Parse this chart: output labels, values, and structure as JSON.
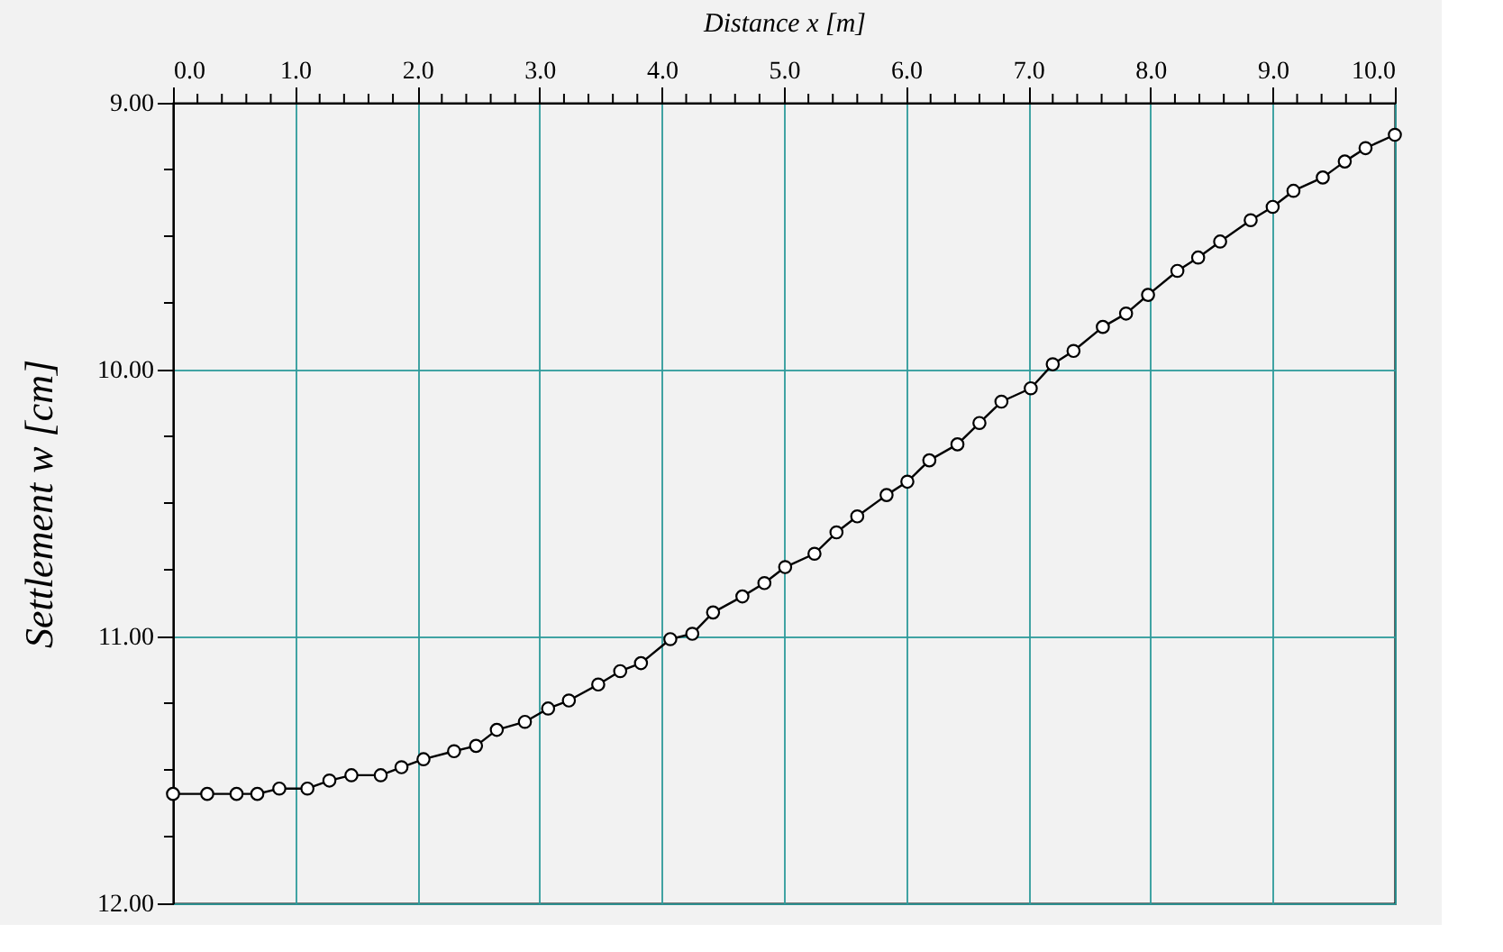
{
  "chart_data": {
    "type": "line",
    "xlabel": "Distance x [m]",
    "ylabel": "Settlement w [cm]",
    "xlim": [
      0,
      10
    ],
    "ylim": [
      12,
      9
    ],
    "xticks": [
      {
        "value": 0,
        "label": "0.0"
      },
      {
        "value": 0.2,
        "label": null
      },
      {
        "value": 0.4,
        "label": null
      },
      {
        "value": 0.6,
        "label": null
      },
      {
        "value": 0.8,
        "label": null
      },
      {
        "value": 1,
        "label": "1.0"
      },
      {
        "value": 1.2,
        "label": null
      },
      {
        "value": 1.4,
        "label": null
      },
      {
        "value": 1.6,
        "label": null
      },
      {
        "value": 1.8,
        "label": null
      },
      {
        "value": 2,
        "label": "2.0"
      },
      {
        "value": 2.2,
        "label": null
      },
      {
        "value": 2.4,
        "label": null
      },
      {
        "value": 2.6,
        "label": null
      },
      {
        "value": 2.8,
        "label": null
      },
      {
        "value": 3,
        "label": "3.0"
      },
      {
        "value": 3.2,
        "label": null
      },
      {
        "value": 3.4,
        "label": null
      },
      {
        "value": 3.6,
        "label": null
      },
      {
        "value": 3.8,
        "label": null
      },
      {
        "value": 4,
        "label": "4.0"
      },
      {
        "value": 4.2,
        "label": null
      },
      {
        "value": 4.4,
        "label": null
      },
      {
        "value": 4.6,
        "label": null
      },
      {
        "value": 4.8,
        "label": null
      },
      {
        "value": 5,
        "label": "5.0"
      },
      {
        "value": 5.2,
        "label": null
      },
      {
        "value": 5.4,
        "label": null
      },
      {
        "value": 5.6,
        "label": null
      },
      {
        "value": 5.8,
        "label": null
      },
      {
        "value": 6,
        "label": "6.0"
      },
      {
        "value": 6.2,
        "label": null
      },
      {
        "value": 6.4,
        "label": null
      },
      {
        "value": 6.6,
        "label": null
      },
      {
        "value": 6.8,
        "label": null
      },
      {
        "value": 7,
        "label": "7.0"
      },
      {
        "value": 7.2,
        "label": null
      },
      {
        "value": 7.4,
        "label": null
      },
      {
        "value": 7.6,
        "label": null
      },
      {
        "value": 7.8,
        "label": null
      },
      {
        "value": 8,
        "label": "8.0"
      },
      {
        "value": 8.2,
        "label": null
      },
      {
        "value": 8.4,
        "label": null
      },
      {
        "value": 8.6,
        "label": null
      },
      {
        "value": 8.8,
        "label": null
      },
      {
        "value": 9,
        "label": "9.0"
      },
      {
        "value": 9.2,
        "label": null
      },
      {
        "value": 9.4,
        "label": null
      },
      {
        "value": 9.6,
        "label": null
      },
      {
        "value": 9.8,
        "label": null
      },
      {
        "value": 10,
        "label": "10.0"
      }
    ],
    "yticks": [
      {
        "value": 9,
        "label": "9.00"
      },
      {
        "value": 9.25,
        "label": null
      },
      {
        "value": 9.5,
        "label": null
      },
      {
        "value": 9.75,
        "label": null
      },
      {
        "value": 10,
        "label": "10.00"
      },
      {
        "value": 10.25,
        "label": null
      },
      {
        "value": 10.5,
        "label": null
      },
      {
        "value": 10.75,
        "label": null
      },
      {
        "value": 11,
        "label": "11.00"
      },
      {
        "value": 11.25,
        "label": null
      },
      {
        "value": 11.5,
        "label": null
      },
      {
        "value": 11.75,
        "label": null
      },
      {
        "value": 12,
        "label": "12.00"
      }
    ],
    "grid": true,
    "marker": "circle",
    "line_style": "solid",
    "series": [
      {
        "color": "#000000",
        "x": [
          0,
          0.28,
          0.52,
          0.69,
          0.87,
          1.1,
          1.28,
          1.46,
          1.7,
          1.87,
          2.05,
          2.3,
          2.48,
          2.65,
          2.88,
          3.07,
          3.24,
          3.48,
          3.66,
          3.83,
          4.07,
          4.25,
          4.42,
          4.66,
          4.84,
          5.01,
          5.25,
          5.43,
          5.6,
          5.84,
          6.01,
          6.19,
          6.42,
          6.6,
          6.78,
          7.02,
          7.2,
          7.37,
          7.61,
          7.8,
          7.98,
          8.22,
          8.39,
          8.57,
          8.82,
          9.0,
          9.17,
          9.41,
          9.59,
          9.76,
          10.0
        ],
        "values": [
          11.59,
          11.59,
          11.59,
          11.59,
          11.57,
          11.57,
          11.54,
          11.52,
          11.52,
          11.49,
          11.46,
          11.43,
          11.41,
          11.35,
          11.32,
          11.27,
          11.24,
          11.18,
          11.13,
          11.1,
          11.01,
          10.99,
          10.91,
          10.85,
          10.8,
          10.74,
          10.69,
          10.61,
          10.55,
          10.47,
          10.42,
          10.34,
          10.28,
          10.2,
          10.12,
          10.07,
          9.98,
          9.93,
          9.84,
          9.79,
          9.72,
          9.63,
          9.58,
          9.52,
          9.44,
          9.39,
          9.33,
          9.28,
          9.22,
          9.17,
          9.12
        ]
      }
    ]
  }
}
